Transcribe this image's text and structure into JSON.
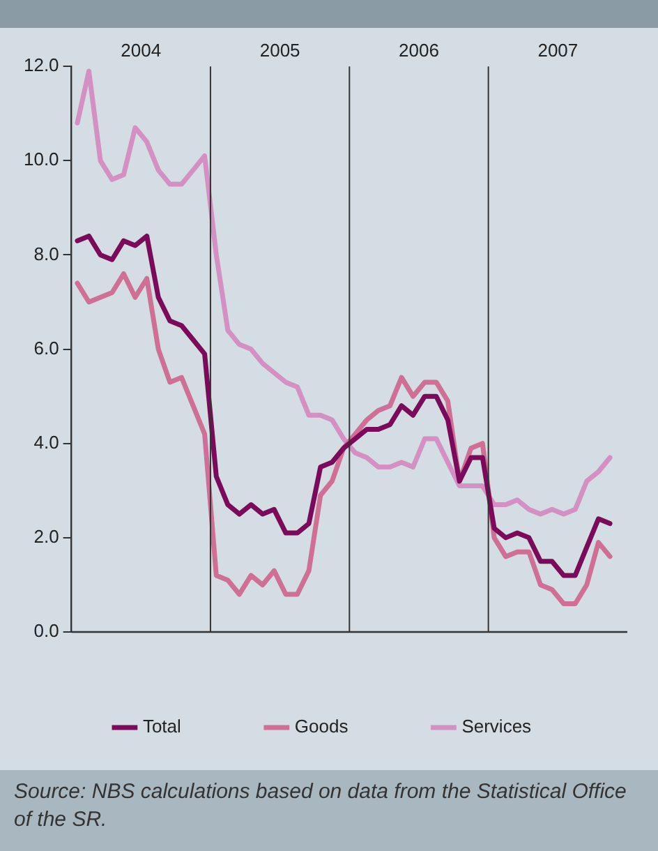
{
  "chart_data": {
    "type": "line",
    "x": [
      2004.042,
      2004.125,
      2004.208,
      2004.292,
      2004.375,
      2004.458,
      2004.542,
      2004.625,
      2004.708,
      2004.792,
      2004.875,
      2004.958,
      2005.042,
      2005.125,
      2005.208,
      2005.292,
      2005.375,
      2005.458,
      2005.542,
      2005.625,
      2005.708,
      2005.792,
      2005.875,
      2005.958,
      2006.042,
      2006.125,
      2006.208,
      2006.292,
      2006.375,
      2006.458,
      2006.542,
      2006.625,
      2006.708,
      2006.792,
      2006.875,
      2006.958,
      2007.042,
      2007.125,
      2007.208,
      2007.292,
      2007.375,
      2007.458,
      2007.542,
      2007.625,
      2007.708,
      2007.792,
      2007.875
    ],
    "series": [
      {
        "name": "Total",
        "color": "#7b0a5a",
        "values": [
          8.3,
          8.4,
          8.0,
          7.9,
          8.3,
          8.2,
          8.4,
          7.1,
          6.6,
          6.5,
          6.2,
          5.9,
          3.3,
          2.7,
          2.5,
          2.7,
          2.5,
          2.6,
          2.1,
          2.1,
          2.3,
          3.5,
          3.6,
          3.9,
          4.1,
          4.3,
          4.3,
          4.4,
          4.8,
          4.6,
          5.0,
          5.0,
          4.5,
          3.2,
          3.7,
          3.7,
          2.2,
          2.0,
          2.1,
          2.0,
          1.5,
          1.5,
          1.2,
          1.2,
          1.8,
          2.4,
          2.3
        ]
      },
      {
        "name": "Goods",
        "color": "#d06f95",
        "values": [
          7.4,
          7.0,
          7.1,
          7.2,
          7.6,
          7.1,
          7.5,
          6.0,
          5.3,
          5.4,
          4.8,
          4.2,
          1.2,
          1.1,
          0.8,
          1.2,
          1.0,
          1.3,
          0.8,
          0.8,
          1.3,
          2.9,
          3.2,
          3.9,
          4.2,
          4.5,
          4.7,
          4.8,
          5.4,
          5.0,
          5.3,
          5.3,
          4.9,
          3.2,
          3.9,
          4.0,
          2.0,
          1.6,
          1.7,
          1.7,
          1.0,
          0.9,
          0.6,
          0.6,
          1.0,
          1.9,
          1.6
        ]
      },
      {
        "name": "Services",
        "color": "#d48fc3",
        "values": [
          10.8,
          11.9,
          10.0,
          9.6,
          9.7,
          10.7,
          10.4,
          9.8,
          9.5,
          9.5,
          9.8,
          10.1,
          8.0,
          6.4,
          6.1,
          6.0,
          5.7,
          5.5,
          5.3,
          5.2,
          4.6,
          4.6,
          4.5,
          4.1,
          3.8,
          3.7,
          3.5,
          3.5,
          3.6,
          3.5,
          4.1,
          4.1,
          3.6,
          3.1,
          3.1,
          3.1,
          2.7,
          2.7,
          2.8,
          2.6,
          2.5,
          2.6,
          2.5,
          2.6,
          3.2,
          3.4,
          3.7
        ]
      }
    ],
    "xlim": [
      2004,
      2008
    ],
    "xticks": [
      {
        "value": 2004.5,
        "label": "2004"
      },
      {
        "value": 2005.5,
        "label": "2005"
      },
      {
        "value": 2006.5,
        "label": "2006"
      },
      {
        "value": 2007.5,
        "label": "2007"
      }
    ],
    "ylim": [
      0,
      12
    ],
    "yticks": [
      {
        "value": 0,
        "label": "0.0"
      },
      {
        "value": 2,
        "label": "2.0"
      },
      {
        "value": 4,
        "label": "4.0"
      },
      {
        "value": 6,
        "label": "6.0"
      },
      {
        "value": 8,
        "label": "8.0"
      },
      {
        "value": 10,
        "label": "10.0"
      },
      {
        "value": 12,
        "label": "12.0"
      }
    ],
    "ref_lines": [
      {
        "axis": "x",
        "value": 2005,
        "color": "#333333"
      },
      {
        "axis": "x",
        "value": 2006,
        "color": "#333333"
      },
      {
        "axis": "x",
        "value": 2007,
        "color": "#333333"
      }
    ],
    "grid": false,
    "legend": "bottom",
    "marker": "none",
    "line_style": "solid",
    "annotations": [
      "Source: NBS calculations based on data from the Statistical Office of the SR."
    ]
  }
}
